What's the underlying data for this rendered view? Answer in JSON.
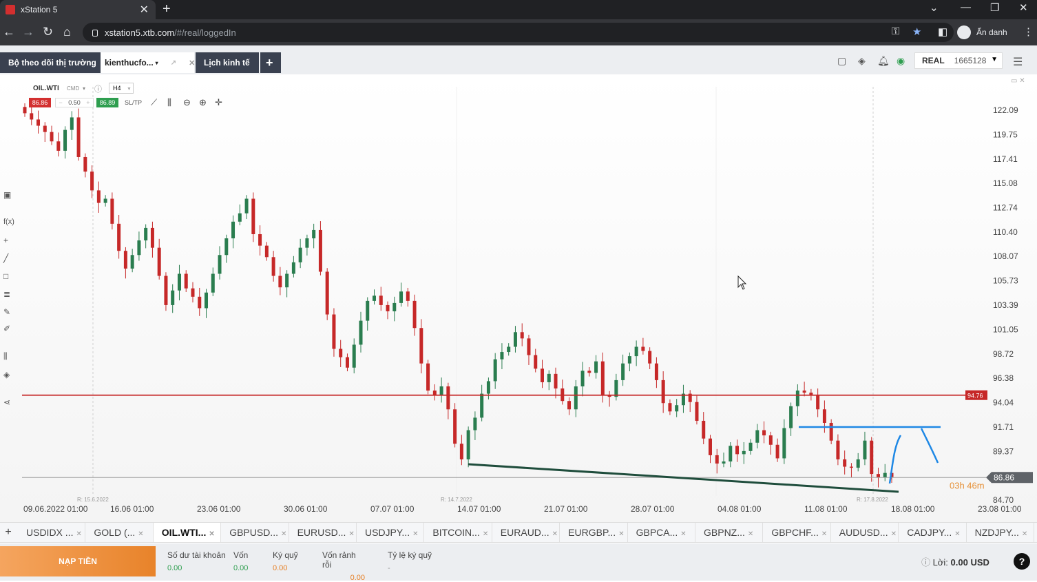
{
  "browser": {
    "tab_title": "xStation 5",
    "url_host": "xstation5.xtb.com",
    "url_path": "/#/real/loggedIn",
    "profile_label": "Ẩn danh"
  },
  "app_tabs": [
    {
      "label": "Bộ theo dõi thị trường"
    },
    {
      "label": "kienthucfo..."
    },
    {
      "label": "Lịch kinh tế"
    }
  ],
  "account": {
    "type": "REAL",
    "number": "1665128"
  },
  "instrument": {
    "symbol": "OIL.WTI",
    "tag": "CMD",
    "timeframe": "H4",
    "sell_price": "86.86",
    "volume": "0.50",
    "buy_price": "86.89",
    "sltp_label": "SL/TP"
  },
  "chart_data": {
    "type": "candlestick",
    "x_tick_labels": [
      "09.06.2022 01:00",
      "16.06 01:00",
      "23.06 01:00",
      "30.06 01:00",
      "07.07 01:00",
      "14.07 01:00",
      "21.07 01:00",
      "28.07 01:00",
      "04.08 01:00",
      "11.08 01:00",
      "18.08 01:00",
      "23.08 01:00"
    ],
    "y_tick_labels": [
      "122.09",
      "119.75",
      "117.41",
      "115.08",
      "112.74",
      "110.40",
      "108.07",
      "105.73",
      "103.39",
      "101.05",
      "98.72",
      "96.38",
      "94.04",
      "91.71",
      "89.37",
      "84.70"
    ],
    "ylim": [
      84.7,
      122.09
    ],
    "rollover_labels": [
      "R: 15.6.2022",
      "R: 14.7.2022",
      "R: 17.8.2022"
    ],
    "horizontal_line": {
      "value": 94.76,
      "label": "94.76",
      "color": "#c62828"
    },
    "current_price": {
      "value": 86.86,
      "label": "86.86"
    },
    "candle_timer": "03h 46m",
    "closes": [
      121.8,
      121.2,
      120.6,
      120.0,
      119.1,
      118.2,
      120.2,
      121.4,
      117.6,
      116.2,
      114.4,
      113.2,
      113.6,
      111.2,
      108.6,
      106.9,
      108.2,
      109.6,
      110.8,
      108.9,
      106.2,
      103.4,
      104.8,
      106.4,
      105.0,
      104.2,
      103.1,
      104.6,
      106.4,
      108.2,
      109.8,
      111.4,
      112.2,
      113.6,
      110.2,
      109.1,
      108.0,
      106.2,
      105.1,
      106.4,
      107.5,
      108.9,
      109.8,
      110.6,
      106.6,
      102.5,
      99.2,
      98.4,
      97.4,
      99.6,
      101.9,
      103.8,
      104.3,
      103.4,
      102.8,
      103.6,
      104.7,
      103.8,
      101.2,
      97.8,
      95.2,
      94.8,
      95.6,
      93.4,
      90.1,
      88.6,
      91.4,
      92.6,
      94.9,
      96.1,
      98.2,
      98.9,
      99.4,
      100.8,
      100.2,
      98.6,
      97.3,
      96.0,
      96.8,
      95.4,
      94.2,
      93.4,
      95.6,
      97.1,
      96.9,
      98.0,
      94.8,
      94.6,
      96.2,
      97.8,
      98.5,
      99.4,
      99.0,
      97.8,
      96.2,
      94.0,
      93.2,
      93.8,
      94.9,
      94.1,
      92.3,
      90.6,
      89.0,
      88.2,
      88.4,
      89.9,
      89.1,
      89.4,
      90.2,
      91.4,
      90.9,
      90.0,
      88.7,
      91.6,
      93.7,
      95.2,
      95.0,
      94.8,
      93.4,
      92.1,
      90.4,
      88.6,
      87.9,
      87.8,
      88.6,
      90.4,
      87.2,
      86.86,
      87.3,
      86.9
    ]
  },
  "chart_tools": {
    "timer_color": "#e69138"
  },
  "instrument_tabs": [
    {
      "label": "USDIDX ..."
    },
    {
      "label": "GOLD (..."
    },
    {
      "label": "OIL.WTI..."
    },
    {
      "label": "GBPUSD..."
    },
    {
      "label": "EURUSD..."
    },
    {
      "label": "USDJPY..."
    },
    {
      "label": "BITCOIN..."
    },
    {
      "label": "EURAUD..."
    },
    {
      "label": "EURGBP..."
    },
    {
      "label": "GBPCA..."
    },
    {
      "label": "GBPNZ..."
    },
    {
      "label": "GBPCHF..."
    },
    {
      "label": "AUDUSD..."
    },
    {
      "label": "CADJPY..."
    },
    {
      "label": "NZDJPY..."
    }
  ],
  "footer": {
    "deposit_label": "NẠP TIỀN",
    "balance_label": "Số dư tài khoản",
    "balance_value": "0.00",
    "equity_label": "Vốn",
    "equity_value": "0.00",
    "margin_label": "Ký quỹ",
    "margin_value": "0.00",
    "free_margin_label": "Vốn rảnh rỗi",
    "free_margin_value": "0.00",
    "margin_level_label": "Tỷ lệ ký quỹ",
    "margin_level_value": "-",
    "profit_label": "Lời:",
    "profit_value": "0.00 USD"
  }
}
